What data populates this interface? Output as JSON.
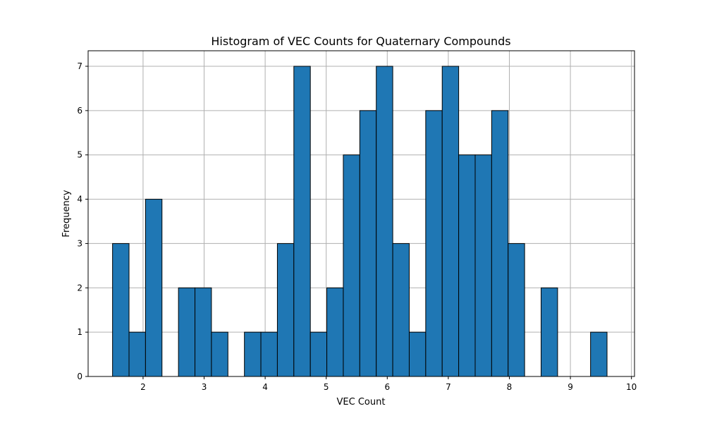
{
  "chart_data": {
    "type": "bar",
    "title": "Histogram of VEC Counts for Quaternary Compounds",
    "xlabel": "VEC Count",
    "ylabel": "Frequency",
    "xlim": [
      1.1,
      10.05
    ],
    "ylim": [
      0,
      7.35
    ],
    "xticks": [
      "2",
      "3",
      "4",
      "5",
      "6",
      "7",
      "8",
      "9",
      "10"
    ],
    "yticks": [
      "0",
      "1",
      "2",
      "3",
      "4",
      "5",
      "6",
      "7"
    ],
    "grid": true,
    "bar_color": "#1f77b4",
    "edge_color": "#000000",
    "bins": [
      {
        "start": 1.5,
        "end": 1.77,
        "count": 3
      },
      {
        "start": 1.77,
        "end": 2.04,
        "count": 1
      },
      {
        "start": 2.04,
        "end": 2.31,
        "count": 4
      },
      {
        "start": 2.31,
        "end": 2.58,
        "count": 0
      },
      {
        "start": 2.58,
        "end": 2.85,
        "count": 2
      },
      {
        "start": 2.85,
        "end": 3.12,
        "count": 2
      },
      {
        "start": 3.12,
        "end": 3.39,
        "count": 1
      },
      {
        "start": 3.39,
        "end": 3.66,
        "count": 0
      },
      {
        "start": 3.66,
        "end": 3.93,
        "count": 1
      },
      {
        "start": 3.93,
        "end": 4.2,
        "count": 1
      },
      {
        "start": 4.2,
        "end": 4.47,
        "count": 3
      },
      {
        "start": 4.47,
        "end": 4.74,
        "count": 7
      },
      {
        "start": 4.74,
        "end": 5.01,
        "count": 1
      },
      {
        "start": 5.01,
        "end": 5.28,
        "count": 2
      },
      {
        "start": 5.28,
        "end": 5.55,
        "count": 5
      },
      {
        "start": 5.55,
        "end": 5.82,
        "count": 6
      },
      {
        "start": 5.82,
        "end": 6.09,
        "count": 7
      },
      {
        "start": 6.09,
        "end": 6.36,
        "count": 3
      },
      {
        "start": 6.36,
        "end": 6.63,
        "count": 1
      },
      {
        "start": 6.63,
        "end": 6.9,
        "count": 6
      },
      {
        "start": 6.9,
        "end": 7.17,
        "count": 7
      },
      {
        "start": 7.17,
        "end": 7.44,
        "count": 5
      },
      {
        "start": 7.44,
        "end": 7.71,
        "count": 5
      },
      {
        "start": 7.71,
        "end": 7.98,
        "count": 6
      },
      {
        "start": 7.98,
        "end": 8.25,
        "count": 3
      },
      {
        "start": 8.25,
        "end": 8.52,
        "count": 0
      },
      {
        "start": 8.52,
        "end": 8.79,
        "count": 2
      },
      {
        "start": 8.79,
        "end": 9.06,
        "count": 0
      },
      {
        "start": 9.06,
        "end": 9.33,
        "count": 0
      },
      {
        "start": 9.33,
        "end": 9.6,
        "count": 1
      }
    ]
  }
}
